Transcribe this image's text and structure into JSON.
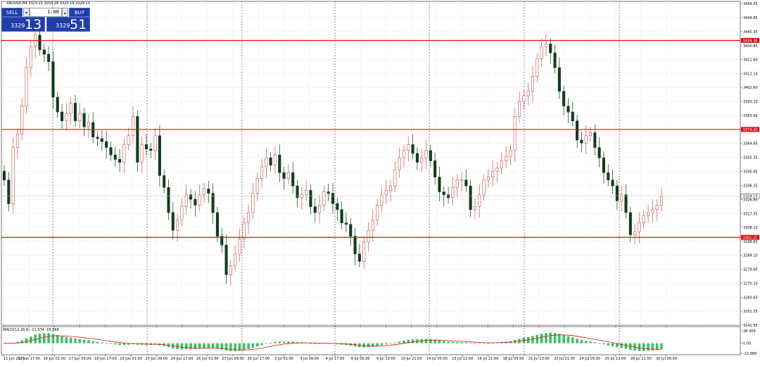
{
  "title": "XAUUSD,H4  3323.21 3333.28 3323.19 3329.13",
  "trade_panel": {
    "sell_label": "SELL",
    "buy_label": "BUY",
    "lot_value": "1.00",
    "lot_down": "▾",
    "lot_up": "▴",
    "sell_price_prefix": "3329",
    "sell_price_main": "13",
    "buy_price_prefix": "3329",
    "buy_price_main": "51"
  },
  "macd_title": "MACD(12,26,9) -11.574 -15.368",
  "colors": {
    "bull": "#d24c4c",
    "bear": "#0f3d1e",
    "hline": "#e01010",
    "macd_bar": "#33c45f",
    "signal": "#e01010",
    "grid": "#dddddd",
    "axis": "#555555",
    "marker_bg": "#e01010"
  },
  "chart_data": {
    "type": "candlestick",
    "symbol": "XAUUSD",
    "timeframe": "H4",
    "y_ticks": [
      "3459.35",
      "3449.85",
      "3440.35",
      "3430.85",
      "3421.60",
      "3412.10",
      "3402.60",
      "3393.10",
      "3383.60",
      "3374.35",
      "3364.85",
      "3355.35",
      "3345.85",
      "3336.35",
      "3326.85",
      "3317.35",
      "3308.10",
      "3298.60",
      "3289.10",
      "3279.60",
      "3270.10",
      "3260.60",
      "3251.35",
      "3241.85"
    ],
    "ylim": [
      3241.85,
      3459.35
    ],
    "x_labels": [
      "11 Jun 2025",
      "12 Jun 17:00",
      "16 Jun 01:00",
      "17 Jun 09:00",
      "18 Jun 17:00",
      "20 Jun 01:00",
      "23 Jun 09:00",
      "24 Jun 17:00",
      "26 Jun 01:00",
      "27 Jun 09:00",
      "30 Jun 17:00",
      "2 Jul 01:00",
      "3 Jul 09:00",
      "4 Jul 17:00",
      "8 Jul 05:00",
      "9 Jul 13:00",
      "10 Jul 21:00",
      "14 Jul 05:00",
      "15 Jul 13:00",
      "16 Jul 21:00",
      "18 Jul 05:00",
      "21 Jul 13:00",
      "22 Jul 21:00",
      "24 Jul 05:00",
      "25 Jul 13:00",
      "28 Jul 21:00",
      "30 Jul 05:00"
    ],
    "horizontal_lines": [
      {
        "price": 3434.38,
        "label": "3434.38"
      },
      {
        "price": 3374.2,
        "label": "3374.20"
      },
      {
        "price": 3301.21,
        "label": "3301.21"
      }
    ],
    "current_price": {
      "price": 3329.13,
      "label": "3329.13"
    },
    "closes": [
      3340,
      3324,
      3362,
      3371,
      3390,
      3416,
      3430,
      3438,
      3428,
      3425,
      3420,
      3396,
      3386,
      3380,
      3385,
      3392,
      3380,
      3385,
      3376,
      3379,
      3369,
      3368,
      3366,
      3362,
      3357,
      3354,
      3352,
      3364,
      3370,
      3383,
      3352,
      3364,
      3361,
      3360,
      3370,
      3343,
      3335,
      3318,
      3306,
      3313,
      3322,
      3330,
      3327,
      3323,
      3330,
      3334,
      3331,
      3318,
      3302,
      3296,
      3276,
      3282,
      3290,
      3300,
      3311,
      3318,
      3331,
      3341,
      3349,
      3355,
      3350,
      3357,
      3345,
      3341,
      3345,
      3336,
      3328,
      3330,
      3333,
      3322,
      3318,
      3323,
      3332,
      3331,
      3324,
      3320,
      3311,
      3310,
      3302,
      3290,
      3285,
      3298,
      3306,
      3313,
      3323,
      3330,
      3333,
      3336,
      3347,
      3355,
      3360,
      3364,
      3358,
      3352,
      3355,
      3360,
      3353,
      3342,
      3332,
      3330,
      3328,
      3335,
      3340,
      3340,
      3336,
      3320,
      3322,
      3330,
      3340,
      3342,
      3346,
      3348,
      3353,
      3356,
      3360,
      3383,
      3393,
      3397,
      3400,
      3410,
      3422,
      3430,
      3432,
      3426,
      3416,
      3400,
      3390,
      3386,
      3380,
      3367,
      3365,
      3370,
      3372,
      3362,
      3355,
      3345,
      3340,
      3336,
      3326,
      3330,
      3318,
      3303,
      3305,
      3311,
      3316,
      3318,
      3320,
      3323,
      3329
    ],
    "macd": {
      "title": "MACD(12,26,9)",
      "main": -11.574,
      "signal": -15.368,
      "y_ticks": [
        "28.309",
        "0.00",
        "-22.989"
      ],
      "ylim": [
        -22.989,
        28.309
      ]
    }
  }
}
